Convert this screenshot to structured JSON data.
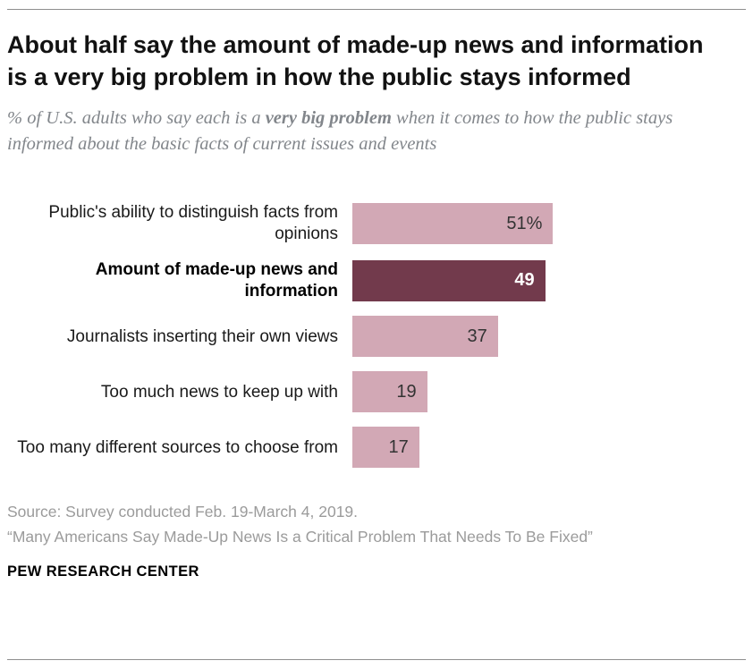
{
  "header": {
    "title": "About half say the amount of made-up news and information is a very big problem in how the public stays informed",
    "subtitle_prefix": "% of U.S. adults who say each is a ",
    "subtitle_bold": "very big problem",
    "subtitle_suffix": " when it comes to how the public stays informed about the basic facts of current issues and events"
  },
  "chart_data": {
    "type": "bar",
    "orientation": "horizontal",
    "title": "About half say the amount of made-up news and information is a very big problem in how the public stays informed",
    "categories": [
      "Public's ability to distinguish facts from opinions",
      "Amount of made-up news and information",
      "Journalists inserting their own views",
      "Too much news to keep up with",
      "Too many different sources to choose from"
    ],
    "values": [
      51,
      49,
      37,
      19,
      17
    ],
    "value_labels": [
      "51%",
      "49",
      "37",
      "19",
      "17"
    ],
    "xlim": [
      0,
      100
    ],
    "grid": "off",
    "legend": "none",
    "highlight_index": 1,
    "colors": {
      "bar": "#d2a8b5",
      "highlight_bar": "#723a4c",
      "value_text": "#333333",
      "highlight_value_text": "#ffffff"
    }
  },
  "footer": {
    "source_line": "Source: Survey conducted Feb. 19-March 4, 2019.",
    "quote_line": "“Many Americans Say Made-Up News Is a Critical Problem That Needs To Be Fixed”",
    "brand": "PEW RESEARCH CENTER"
  }
}
